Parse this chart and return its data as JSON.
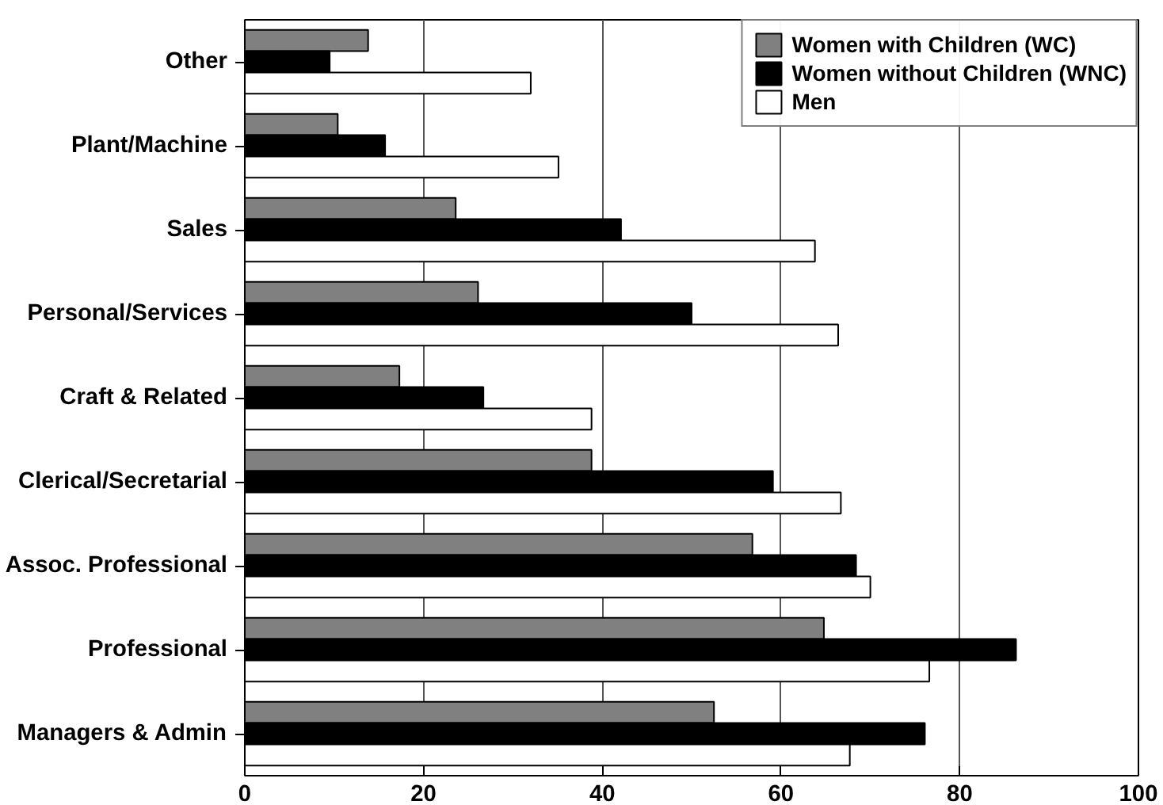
{
  "chart_data": {
    "type": "bar",
    "orientation": "horizontal",
    "categories": [
      "Other",
      "Plant/Machine",
      "Sales",
      "Personal/Services",
      "Craft & Related",
      "Clerical/Secretarial",
      "Assoc. Professional",
      "Professional",
      "Managers & Admin"
    ],
    "series": [
      {
        "name": "Women with Children (WC)",
        "color": "#808080",
        "values": [
          13.8,
          10.4,
          23.6,
          26.1,
          17.3,
          38.8,
          56.8,
          64.8,
          52.5
        ]
      },
      {
        "name": "Women without Children (WNC)",
        "color": "#000000",
        "values": [
          9.5,
          15.7,
          42.1,
          50.0,
          26.7,
          59.1,
          68.4,
          86.3,
          76.1
        ]
      },
      {
        "name": "Men",
        "color": "#ffffff",
        "values": [
          32.0,
          35.1,
          63.8,
          66.4,
          38.8,
          66.7,
          70.0,
          76.6,
          67.7
        ]
      }
    ],
    "xlim": [
      0,
      100
    ],
    "xticks": [
      0,
      20,
      40,
      60,
      80,
      100
    ],
    "grid": "x",
    "legend": "top right"
  }
}
